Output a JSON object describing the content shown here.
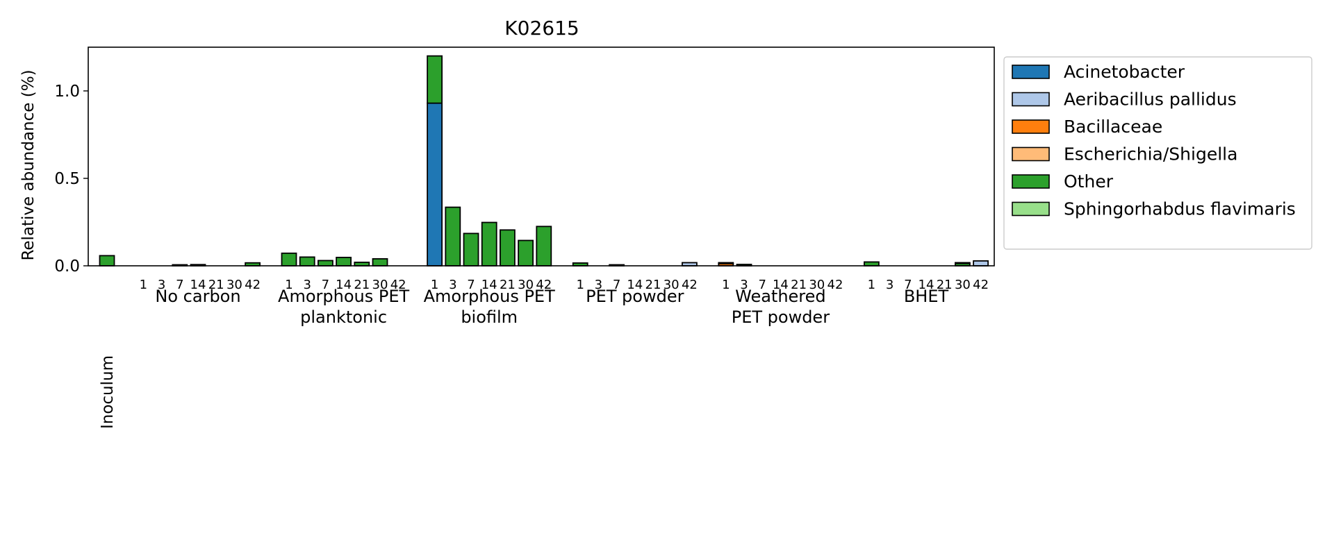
{
  "chart_data": {
    "type": "bar",
    "stacked": true,
    "title": "K02615",
    "ylabel": "Relative abundance (%)",
    "xlabel": "",
    "ylim": [
      0,
      1.25
    ],
    "yticks": [
      "0.0",
      "0.5",
      "1.0"
    ],
    "day_labels": [
      "1",
      "3",
      "7",
      "14",
      "21",
      "30",
      "42"
    ],
    "legend_position": "outside-right",
    "groups": [
      {
        "name": "Inoculum",
        "days": [],
        "rotated": true
      },
      {
        "name": "No carbon",
        "days": [
          "1",
          "3",
          "7",
          "14",
          "21",
          "30",
          "42"
        ]
      },
      {
        "name": "Amorphous PET\nplanktonic",
        "days": [
          "1",
          "3",
          "7",
          "14",
          "21",
          "30",
          "42"
        ]
      },
      {
        "name": "Amorphous PET\nbiofilm",
        "days": [
          "1",
          "3",
          "7",
          "14",
          "21",
          "30",
          "42"
        ]
      },
      {
        "name": "PET powder",
        "days": [
          "1",
          "3",
          "7",
          "14",
          "21",
          "30",
          "42"
        ]
      },
      {
        "name": "Weathered\nPET powder",
        "days": [
          "1",
          "3",
          "7",
          "14",
          "21",
          "30",
          "42"
        ]
      },
      {
        "name": "BHET",
        "days": [
          "1",
          "3",
          "7",
          "14",
          "21",
          "30",
          "42"
        ]
      }
    ],
    "series": [
      {
        "name": "Acinetobacter",
        "color": "#1f77b4",
        "values": [
          [
            0
          ],
          [
            0,
            0,
            0,
            0,
            0,
            0,
            0
          ],
          [
            0,
            0,
            0,
            0,
            0,
            0,
            0
          ],
          [
            0.93,
            0,
            0,
            0,
            0,
            0,
            0
          ],
          [
            0,
            0,
            0,
            0,
            0,
            0,
            0
          ],
          [
            0,
            0,
            0,
            0,
            0,
            0,
            0
          ],
          [
            0,
            0,
            0,
            0,
            0,
            0,
            0
          ]
        ]
      },
      {
        "name": "Aeribacillus pallidus",
        "color": "#aec7e8",
        "values": [
          [
            0
          ],
          [
            0,
            0,
            0,
            0,
            0,
            0,
            0
          ],
          [
            0,
            0,
            0,
            0,
            0,
            0,
            0
          ],
          [
            0,
            0,
            0,
            0,
            0,
            0,
            0
          ],
          [
            0,
            0,
            0,
            0,
            0,
            0,
            0.018
          ],
          [
            0,
            0,
            0,
            0,
            0,
            0,
            0
          ],
          [
            0,
            0,
            0,
            0,
            0,
            0,
            0.028
          ]
        ]
      },
      {
        "name": "Bacillaceae",
        "color": "#ff7f0e",
        "values": [
          [
            0
          ],
          [
            0,
            0,
            0,
            0,
            0,
            0,
            0
          ],
          [
            0,
            0,
            0,
            0,
            0,
            0,
            0
          ],
          [
            0,
            0,
            0,
            0,
            0,
            0,
            0
          ],
          [
            0,
            0,
            0,
            0,
            0,
            0,
            0
          ],
          [
            0.012,
            0,
            0,
            0,
            0,
            0,
            0
          ],
          [
            0,
            0,
            0,
            0,
            0,
            0,
            0
          ]
        ]
      },
      {
        "name": "Escherichia/Shigella",
        "color": "#ffbb78",
        "values": [
          [
            0
          ],
          [
            0,
            0,
            0,
            0,
            0,
            0,
            0
          ],
          [
            0,
            0,
            0,
            0,
            0,
            0,
            0
          ],
          [
            0,
            0,
            0,
            0,
            0,
            0,
            0
          ],
          [
            0,
            0,
            0,
            0,
            0,
            0,
            0
          ],
          [
            0,
            0,
            0,
            0,
            0,
            0,
            0
          ],
          [
            0,
            0,
            0,
            0,
            0,
            0,
            0
          ]
        ]
      },
      {
        "name": "Other",
        "color": "#2ca02c",
        "values": [
          [
            0.058
          ],
          [
            0,
            0,
            0.006,
            0.007,
            0,
            0,
            0.017
          ],
          [
            0.072,
            0.05,
            0.03,
            0.048,
            0.02,
            0.04,
            0
          ],
          [
            0.27,
            0.335,
            0.185,
            0.248,
            0.205,
            0.145,
            0.225
          ],
          [
            0.016,
            0,
            0.006,
            0,
            0,
            0,
            0
          ],
          [
            0.006,
            0.008,
            0,
            0,
            0,
            0,
            0
          ],
          [
            0.022,
            0,
            0,
            0,
            0,
            0.014,
            0
          ]
        ]
      },
      {
        "name": "Sphingorhabdus flavimaris",
        "color": "#98df8a",
        "values": [
          [
            0
          ],
          [
            0,
            0,
            0,
            0,
            0,
            0,
            0
          ],
          [
            0,
            0,
            0,
            0,
            0,
            0,
            0
          ],
          [
            0,
            0,
            0,
            0,
            0,
            0,
            0
          ],
          [
            0,
            0,
            0,
            0,
            0,
            0,
            0
          ],
          [
            0,
            0,
            0,
            0,
            0,
            0,
            0
          ],
          [
            0,
            0,
            0,
            0,
            0,
            0.004,
            0
          ]
        ]
      }
    ]
  }
}
